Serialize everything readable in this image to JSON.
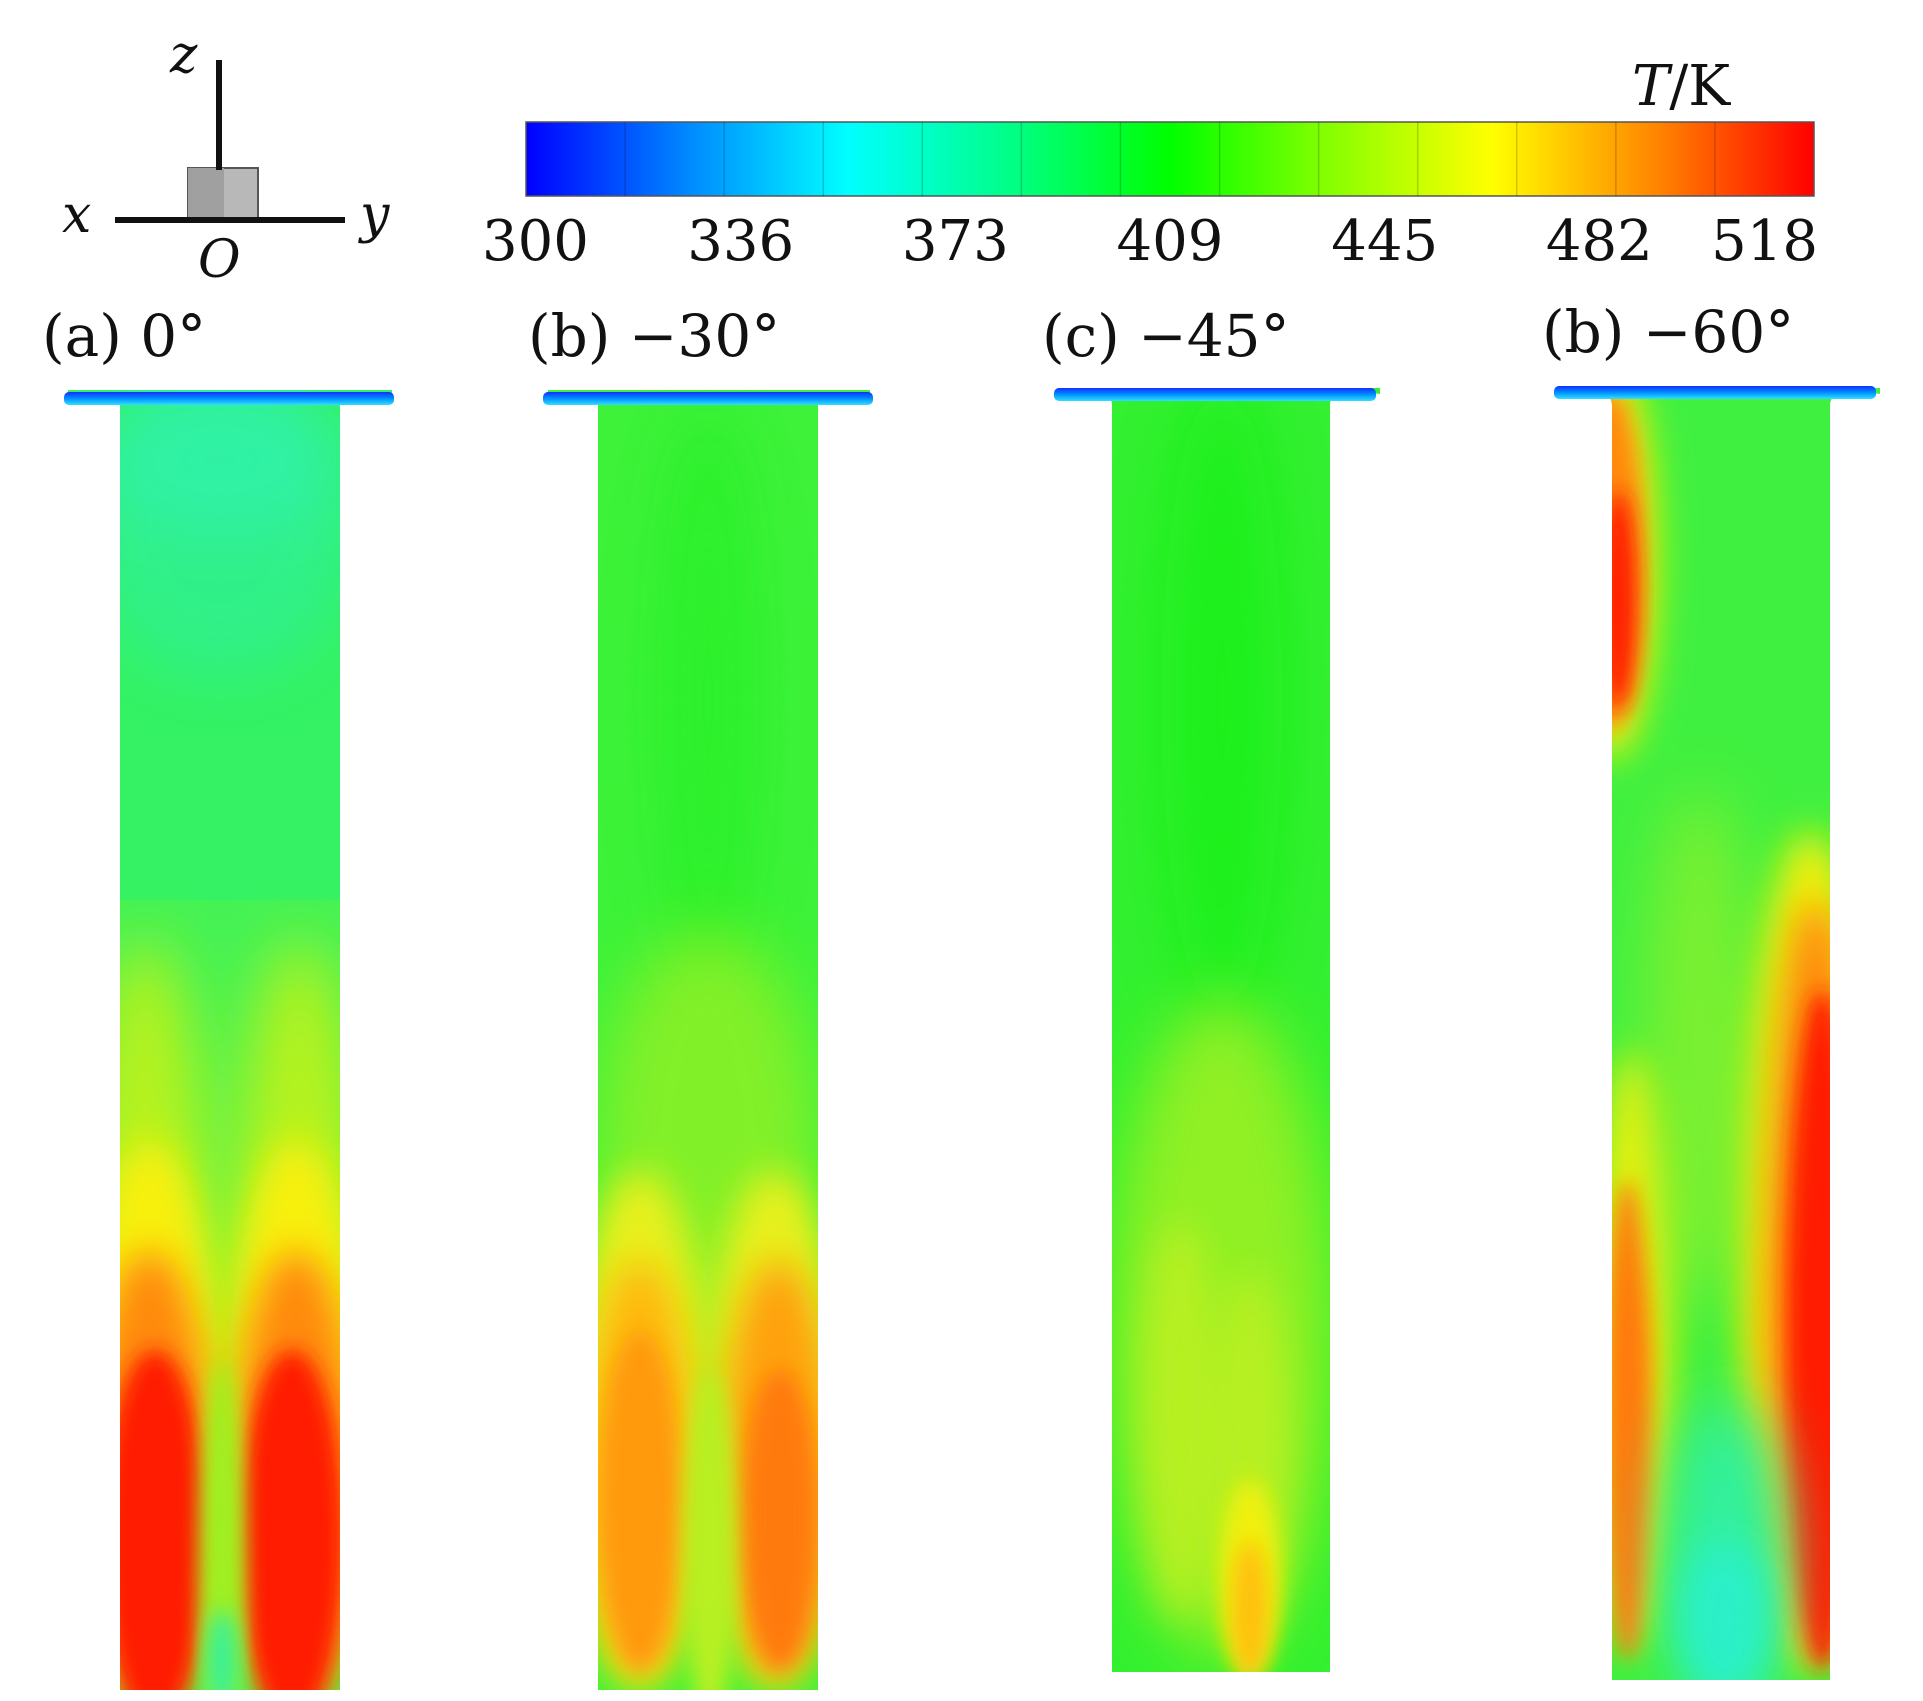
{
  "axes_icon": {
    "z_label": "z",
    "x_label": "x",
    "y_label": "y",
    "origin_label": "O"
  },
  "colorbar": {
    "title_italic": "T",
    "title_rest": "/K",
    "min": 300,
    "max": 518,
    "ticks": [
      "300",
      "336",
      "373",
      "409",
      "445",
      "482",
      "518"
    ],
    "bands": 13,
    "colors": [
      "#0000ff",
      "#0088ff",
      "#00ffff",
      "#00ff88",
      "#00ff00",
      "#88ff00",
      "#ffff00",
      "#ff8800",
      "#ff0000"
    ]
  },
  "panels": [
    {
      "label": "(a) 0°"
    },
    {
      "label": "(b) −30°"
    },
    {
      "label": "(c) −45°"
    },
    {
      "label": "(b) −60°"
    }
  ]
}
